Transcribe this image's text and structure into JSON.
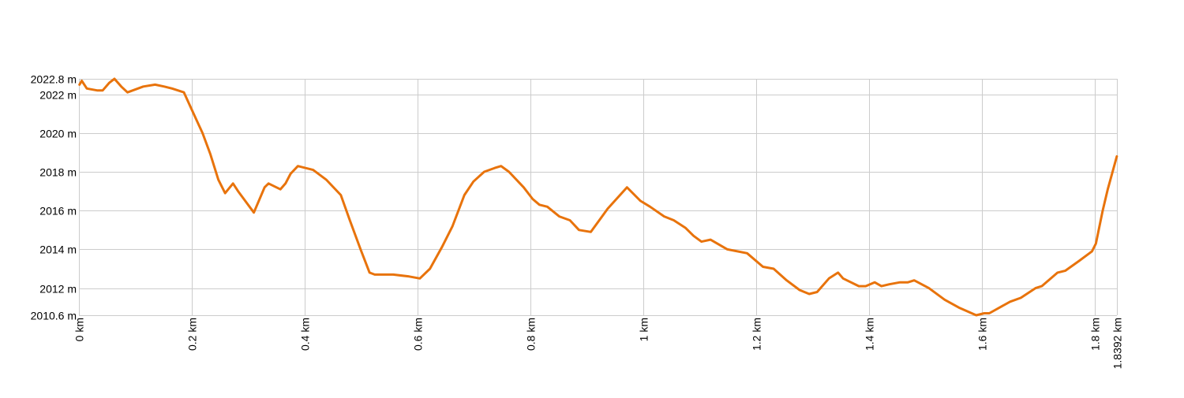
{
  "chart_data": {
    "type": "line",
    "title": "",
    "xlabel": "",
    "ylabel": "",
    "xlim": [
      0,
      1.8392
    ],
    "ylim": [
      2010.6,
      2022.8
    ],
    "grid": true,
    "line_color": "#e8730c",
    "grid_color": "#cccccc",
    "y_ticks": [
      {
        "value": 2010.6,
        "label": "2010.6 m"
      },
      {
        "value": 2012,
        "label": "2012 m"
      },
      {
        "value": 2014,
        "label": "2014 m"
      },
      {
        "value": 2016,
        "label": "2016 m"
      },
      {
        "value": 2018,
        "label": "2018 m"
      },
      {
        "value": 2020,
        "label": "2020 m"
      },
      {
        "value": 2022,
        "label": "2022 m"
      },
      {
        "value": 2022.8,
        "label": "2022.8 m"
      }
    ],
    "x_ticks": [
      {
        "value": 0,
        "label": "0 km"
      },
      {
        "value": 0.2,
        "label": "0.2 km"
      },
      {
        "value": 0.4,
        "label": "0.4 km"
      },
      {
        "value": 0.6,
        "label": "0.6 km"
      },
      {
        "value": 0.8,
        "label": "0.8 km"
      },
      {
        "value": 1.0,
        "label": "1 km"
      },
      {
        "value": 1.2,
        "label": "1.2 km"
      },
      {
        "value": 1.4,
        "label": "1.4 km"
      },
      {
        "value": 1.6,
        "label": "1.6 km"
      },
      {
        "value": 1.8,
        "label": "1.8 km"
      },
      {
        "value": 1.8392,
        "label": "1.8392 km"
      }
    ],
    "series": [
      {
        "x": [
          0.001,
          0.005,
          0.014,
          0.033,
          0.042,
          0.054,
          0.063,
          0.075,
          0.086,
          0.114,
          0.135,
          0.151,
          0.165,
          0.186,
          0.2,
          0.219,
          0.233,
          0.247,
          0.259,
          0.273,
          0.282,
          0.31,
          0.329,
          0.336,
          0.357,
          0.366,
          0.375,
          0.388,
          0.415,
          0.438,
          0.464,
          0.48,
          0.499,
          0.515,
          0.524,
          0.557,
          0.585,
          0.604,
          0.622,
          0.643,
          0.662,
          0.683,
          0.699,
          0.718,
          0.737,
          0.748,
          0.762,
          0.788,
          0.804,
          0.816,
          0.83,
          0.851,
          0.87,
          0.886,
          0.907,
          0.937,
          0.971,
          0.995,
          1.012,
          1.037,
          1.054,
          1.075,
          1.089,
          1.103,
          1.119,
          1.149,
          1.184,
          1.212,
          1.231,
          1.254,
          1.277,
          1.294,
          1.308,
          1.329,
          1.345,
          1.354,
          1.382,
          1.394,
          1.41,
          1.422,
          1.436,
          1.455,
          1.469,
          1.48,
          1.506,
          1.534,
          1.559,
          1.59,
          1.604,
          1.613,
          1.65,
          1.669,
          1.695,
          1.706,
          1.734,
          1.748,
          1.772,
          1.795,
          1.802,
          1.814,
          1.823,
          1.839
        ],
        "y": [
          2022.5,
          2022.7,
          2022.3,
          2022.2,
          2022.2,
          2022.6,
          2022.8,
          2022.4,
          2022.1,
          2022.4,
          2022.5,
          2022.4,
          2022.3,
          2022.1,
          2021.2,
          2020.0,
          2018.9,
          2017.6,
          2016.9,
          2017.4,
          2017.0,
          2015.9,
          2017.2,
          2017.4,
          2017.1,
          2017.4,
          2017.9,
          2018.3,
          2018.1,
          2017.6,
          2016.8,
          2015.5,
          2014.0,
          2012.8,
          2012.7,
          2012.7,
          2012.6,
          2012.5,
          2013.0,
          2014.1,
          2015.2,
          2016.8,
          2017.5,
          2018.0,
          2018.2,
          2018.3,
          2018.0,
          2017.2,
          2016.6,
          2016.3,
          2016.2,
          2015.7,
          2015.5,
          2015.0,
          2014.9,
          2016.1,
          2017.2,
          2016.5,
          2016.2,
          2015.7,
          2015.5,
          2015.1,
          2014.7,
          2014.4,
          2014.5,
          2014.0,
          2013.8,
          2013.1,
          2013.0,
          2012.4,
          2011.9,
          2011.7,
          2011.8,
          2012.5,
          2012.8,
          2012.5,
          2012.1,
          2012.1,
          2012.3,
          2012.1,
          2012.2,
          2012.3,
          2012.3,
          2012.4,
          2012.0,
          2011.4,
          2011.0,
          2010.6,
          2010.7,
          2010.7,
          2011.3,
          2011.5,
          2012.0,
          2012.1,
          2012.8,
          2012.9,
          2013.4,
          2013.9,
          2014.3,
          2016.0,
          2017.1,
          2018.8
        ]
      }
    ]
  }
}
